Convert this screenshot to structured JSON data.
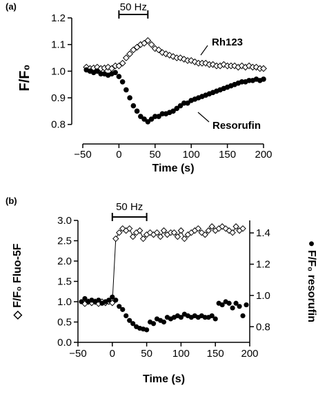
{
  "chart_data": [
    {
      "panel": "(a)",
      "type": "scatter",
      "xlabel": "Time (s)",
      "ylabel": "F/F₀",
      "xlim": [
        -50,
        200
      ],
      "ylim": [
        0.75,
        1.2
      ],
      "x_ticks": [
        "−50",
        "0",
        "50",
        "100",
        "150",
        "200"
      ],
      "y_ticks": [
        "0.8",
        "0.9",
        "1.0",
        "1.1",
        "1.2"
      ],
      "stimulus": {
        "label": "50 Hz",
        "start": 0,
        "end": 40
      },
      "series": [
        {
          "name": "Rh123",
          "marker": "open-diamond",
          "x": [
            -45,
            -40,
            -35,
            -30,
            -25,
            -20,
            -15,
            -10,
            -5,
            0,
            5,
            10,
            15,
            20,
            25,
            30,
            35,
            40,
            45,
            50,
            55,
            60,
            65,
            70,
            75,
            80,
            85,
            90,
            95,
            100,
            105,
            110,
            115,
            120,
            125,
            130,
            135,
            140,
            145,
            150,
            155,
            160,
            165,
            170,
            175,
            180,
            185,
            190,
            195,
            200
          ],
          "y": [
            1.015,
            1.01,
            1.012,
            1.015,
            1.01,
            1.012,
            1.015,
            1.01,
            1.02,
            1.02,
            1.03,
            1.05,
            1.065,
            1.08,
            1.09,
            1.1,
            1.105,
            1.115,
            1.1,
            1.085,
            1.08,
            1.07,
            1.065,
            1.06,
            1.055,
            1.05,
            1.05,
            1.045,
            1.04,
            1.04,
            1.035,
            1.03,
            1.03,
            1.03,
            1.025,
            1.025,
            1.02,
            1.02,
            1.025,
            1.02,
            1.02,
            1.02,
            1.015,
            1.02,
            1.015,
            1.02,
            1.015,
            1.015,
            1.01,
            1.01
          ]
        },
        {
          "name": "Resorufin",
          "marker": "filled-circle",
          "x": [
            -45,
            -40,
            -35,
            -30,
            -25,
            -20,
            -15,
            -10,
            -5,
            0,
            5,
            10,
            15,
            20,
            25,
            30,
            35,
            40,
            45,
            50,
            55,
            60,
            65,
            70,
            75,
            80,
            85,
            90,
            95,
            100,
            105,
            110,
            115,
            120,
            125,
            130,
            135,
            140,
            145,
            150,
            155,
            160,
            165,
            170,
            175,
            180,
            185,
            190,
            195,
            200
          ],
          "y": [
            1.005,
            1.0,
            0.995,
            1.0,
            0.99,
            0.99,
            0.985,
            0.99,
            0.995,
            0.98,
            0.96,
            0.93,
            0.9,
            0.87,
            0.85,
            0.83,
            0.82,
            0.81,
            0.82,
            0.83,
            0.83,
            0.84,
            0.84,
            0.845,
            0.85,
            0.86,
            0.87,
            0.88,
            0.88,
            0.89,
            0.895,
            0.9,
            0.905,
            0.91,
            0.915,
            0.92,
            0.925,
            0.93,
            0.935,
            0.94,
            0.945,
            0.95,
            0.955,
            0.96,
            0.96,
            0.965,
            0.965,
            0.97,
            0.965,
            0.97
          ]
        }
      ],
      "annotations": [
        "Rh123",
        "Resorufin"
      ]
    },
    {
      "panel": "(b)",
      "type": "scatter",
      "xlabel": "Time (s)",
      "ylabel": "◇ F/F₀ Fluo-5F",
      "ylabel_right": "● F/F₀ resorufin",
      "xlim": [
        -50,
        200
      ],
      "ylim": [
        0,
        3.0
      ],
      "ylim_right": [
        0.7,
        1.48
      ],
      "x_ticks": [
        "−50",
        "0",
        "50",
        "100",
        "150",
        "200"
      ],
      "y_ticks": [
        "0.0",
        "0.5",
        "1.0",
        "1.5",
        "2.0",
        "2.5",
        "3.0"
      ],
      "y_ticks_right": [
        "0.8",
        "1.0",
        "1.2",
        "1.4"
      ],
      "stimulus": {
        "label": "50 Hz",
        "start": 0,
        "end": 50
      },
      "series": [
        {
          "name": "Fluo-5F",
          "marker": "open-diamond",
          "connected": true,
          "x": [
            -40,
            -35,
            -30,
            -25,
            -20,
            -15,
            -10,
            -5,
            0,
            5,
            10,
            15,
            20,
            25,
            30,
            35,
            40,
            45,
            50,
            55,
            60,
            65,
            70,
            75,
            80,
            85,
            90,
            95,
            100,
            105,
            110,
            115,
            120,
            125,
            130,
            135,
            140,
            145,
            150,
            155,
            160,
            165,
            170,
            175,
            180,
            185,
            190
          ],
          "y": [
            0.95,
            1.0,
            0.97,
            1.0,
            0.95,
            1.0,
            0.97,
            1.0,
            0.97,
            2.55,
            2.7,
            2.8,
            2.75,
            2.8,
            2.6,
            2.7,
            2.75,
            2.55,
            2.65,
            2.7,
            2.65,
            2.7,
            2.6,
            2.75,
            2.65,
            2.7,
            2.7,
            2.6,
            2.75,
            2.55,
            2.65,
            2.7,
            2.75,
            2.8,
            2.7,
            2.65,
            2.75,
            2.85,
            2.75,
            2.8,
            2.85,
            2.8,
            2.75,
            2.7,
            2.85,
            2.75,
            2.8
          ]
        },
        {
          "name": "resorufin",
          "marker": "filled-circle",
          "axis": "right",
          "x": [
            -45,
            -40,
            -35,
            -30,
            -25,
            -20,
            -15,
            -10,
            -5,
            0,
            5,
            10,
            15,
            20,
            25,
            30,
            35,
            40,
            45,
            50,
            55,
            60,
            65,
            70,
            75,
            80,
            85,
            90,
            95,
            100,
            105,
            110,
            115,
            120,
            125,
            130,
            135,
            140,
            145,
            150,
            155,
            160,
            165,
            170,
            175,
            180,
            185,
            190,
            195
          ],
          "y": [
            0.96,
            0.98,
            0.96,
            0.97,
            0.96,
            0.97,
            0.95,
            0.96,
            0.97,
            0.99,
            0.97,
            0.93,
            0.91,
            0.87,
            0.84,
            0.82,
            0.8,
            0.79,
            0.785,
            0.78,
            0.83,
            0.82,
            0.85,
            0.84,
            0.83,
            0.86,
            0.85,
            0.86,
            0.87,
            0.86,
            0.88,
            0.87,
            0.86,
            0.87,
            0.86,
            0.87,
            0.86,
            0.86,
            0.87,
            0.85,
            0.95,
            0.94,
            0.96,
            0.95,
            0.92,
            0.95,
            0.93,
            0.87,
            0.94
          ]
        }
      ]
    }
  ]
}
